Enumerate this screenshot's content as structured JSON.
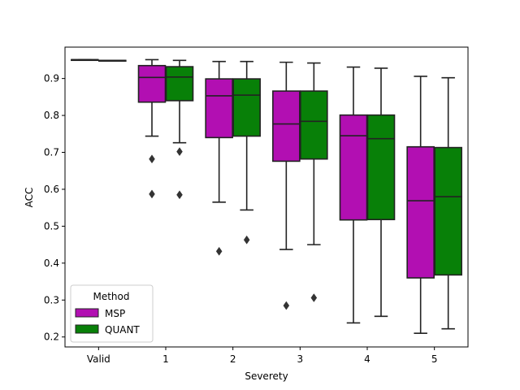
{
  "chart_data": {
    "type": "boxplot",
    "xlabel": "Severety",
    "ylabel": "ACC",
    "ylim": [
      0.173,
      0.985
    ],
    "yticks": [
      0.2,
      0.3,
      0.4,
      0.5,
      0.6,
      0.7,
      0.8,
      0.9
    ],
    "ytick_labels": [
      "0.2",
      "0.3",
      "0.4",
      "0.5",
      "0.6",
      "0.7",
      "0.8",
      "0.9"
    ],
    "categories": [
      "Valid",
      "1",
      "2",
      "3",
      "4",
      "5"
    ],
    "grid": false,
    "legend": {
      "title": "Method",
      "placement": "lower-left"
    },
    "series": [
      {
        "name": "MSP",
        "color": "#b20fb2",
        "boxes": [
          {
            "min": 0.951,
            "q1": 0.951,
            "median": 0.951,
            "q3": 0.951,
            "max": 0.951,
            "outliers": []
          },
          {
            "min": 0.744,
            "q1": 0.836,
            "median": 0.903,
            "q3": 0.935,
            "max": 0.951,
            "outliers": [
              0.682,
              0.587
            ]
          },
          {
            "min": 0.565,
            "q1": 0.74,
            "median": 0.853,
            "q3": 0.899,
            "max": 0.946,
            "outliers": [
              0.432
            ]
          },
          {
            "min": 0.437,
            "q1": 0.676,
            "median": 0.777,
            "q3": 0.866,
            "max": 0.944,
            "outliers": [
              0.285
            ]
          },
          {
            "min": 0.238,
            "q1": 0.517,
            "median": 0.745,
            "q3": 0.801,
            "max": 0.931,
            "outliers": []
          },
          {
            "min": 0.21,
            "q1": 0.36,
            "median": 0.569,
            "q3": 0.715,
            "max": 0.906,
            "outliers": []
          }
        ]
      },
      {
        "name": "QUANT",
        "color": "#088008",
        "boxes": [
          {
            "min": 0.949,
            "q1": 0.949,
            "median": 0.949,
            "q3": 0.949,
            "max": 0.949,
            "outliers": []
          },
          {
            "min": 0.726,
            "q1": 0.84,
            "median": 0.904,
            "q3": 0.932,
            "max": 0.949,
            "outliers": [
              0.702,
              0.585
            ]
          },
          {
            "min": 0.544,
            "q1": 0.744,
            "median": 0.855,
            "q3": 0.899,
            "max": 0.946,
            "outliers": [
              0.463
            ]
          },
          {
            "min": 0.45,
            "q1": 0.682,
            "median": 0.784,
            "q3": 0.866,
            "max": 0.942,
            "outliers": [
              0.306
            ]
          },
          {
            "min": 0.256,
            "q1": 0.518,
            "median": 0.737,
            "q3": 0.801,
            "max": 0.928,
            "outliers": []
          },
          {
            "min": 0.222,
            "q1": 0.368,
            "median": 0.58,
            "q3": 0.713,
            "max": 0.902,
            "outliers": []
          }
        ]
      }
    ]
  }
}
